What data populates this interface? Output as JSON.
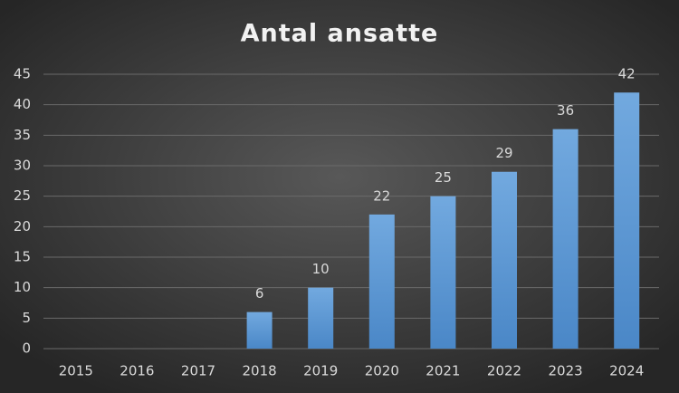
{
  "chart_data": {
    "type": "bar",
    "title": "Antal ansatte",
    "categories": [
      "2015",
      "2016",
      "2017",
      "2018",
      "2019",
      "2020",
      "2021",
      "2022",
      "2023",
      "2024"
    ],
    "values": [
      null,
      null,
      null,
      6,
      10,
      22,
      25,
      29,
      36,
      42
    ],
    "color": "#5b9bd5",
    "ylim": [
      0,
      45
    ],
    "yticks": [
      0,
      5,
      10,
      15,
      20,
      25,
      30,
      35,
      40,
      45
    ],
    "grid": true
  }
}
